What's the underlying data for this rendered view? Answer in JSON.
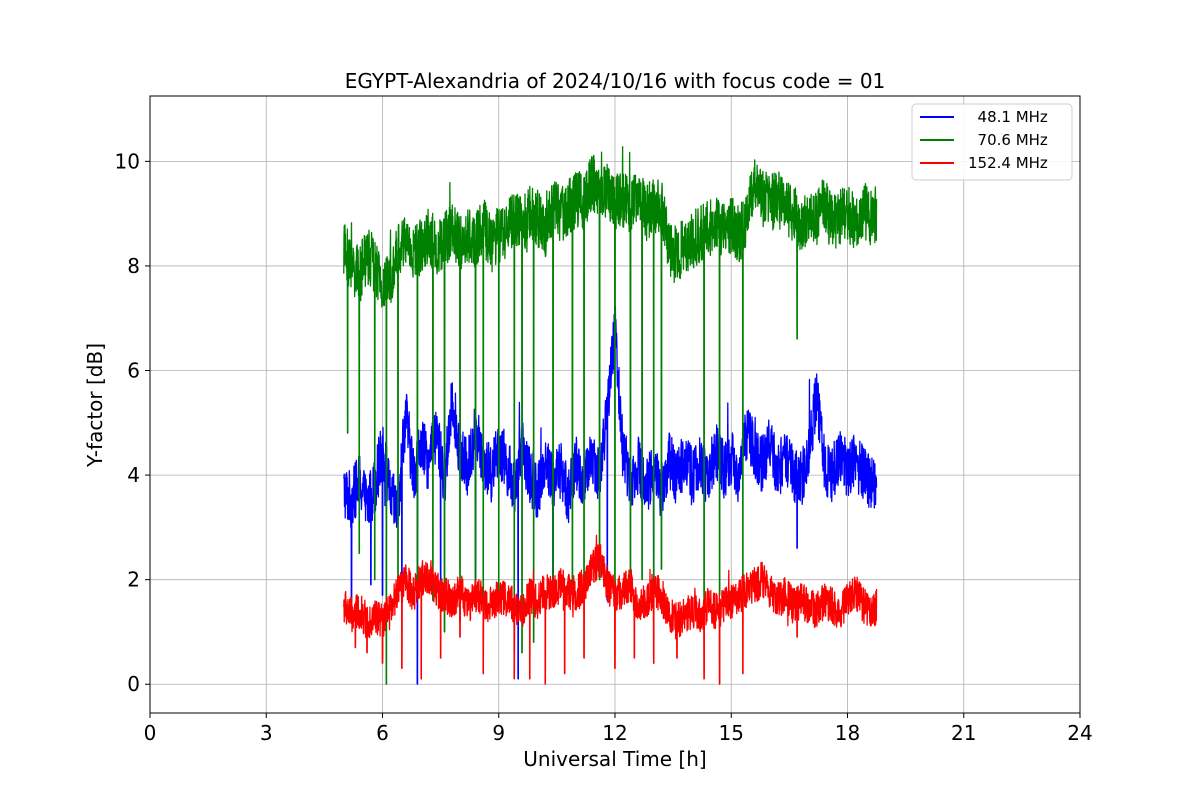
{
  "chart_data": {
    "type": "line",
    "title": "EGYPT-Alexandria of 2024/10/16 with focus code = 01",
    "xlabel": "Universal Time [h]",
    "ylabel": "Y-factor [dB]",
    "xlim": [
      0,
      24
    ],
    "ylim": [
      -0.55,
      11.25
    ],
    "xticks": [
      0,
      3,
      6,
      9,
      12,
      15,
      18,
      21,
      24
    ],
    "yticks": [
      0,
      2,
      4,
      6,
      8,
      10
    ],
    "grid": true,
    "legend_position": "top-right",
    "series": [
      {
        "name": "  48.1 MHz",
        "color": "#0000ff",
        "x": [
          5.0,
          5.2,
          5.4,
          5.6,
          5.8,
          6.0,
          6.2,
          6.4,
          6.6,
          6.8,
          7.0,
          7.2,
          7.4,
          7.6,
          7.8,
          8.0,
          8.2,
          8.4,
          8.6,
          8.8,
          9.0,
          9.2,
          9.4,
          9.6,
          9.8,
          10.0,
          10.2,
          10.4,
          10.6,
          10.8,
          11.0,
          11.2,
          11.4,
          11.6,
          11.8,
          12.0,
          12.2,
          12.4,
          12.6,
          12.8,
          13.0,
          13.2,
          13.4,
          13.6,
          13.8,
          14.0,
          14.2,
          14.4,
          14.6,
          14.8,
          15.0,
          15.2,
          15.4,
          15.6,
          15.8,
          16.0,
          16.2,
          16.4,
          16.6,
          16.8,
          17.0,
          17.2,
          17.4,
          17.6,
          17.8,
          18.0,
          18.2,
          18.4,
          18.6,
          18.75
        ],
        "y": [
          3.7,
          3.5,
          3.9,
          3.4,
          3.8,
          4.5,
          3.6,
          3.3,
          5.2,
          4.0,
          4.6,
          4.2,
          4.8,
          3.9,
          5.5,
          4.4,
          4.1,
          4.9,
          4.3,
          4.0,
          4.6,
          4.2,
          3.8,
          4.5,
          4.0,
          3.7,
          4.3,
          3.9,
          4.1,
          3.6,
          4.2,
          3.8,
          4.4,
          4.0,
          5.2,
          6.8,
          4.5,
          3.9,
          4.2,
          3.8,
          4.1,
          3.7,
          4.3,
          3.9,
          4.4,
          4.0,
          4.2,
          3.9,
          4.5,
          4.1,
          4.3,
          4.0,
          4.8,
          4.5,
          4.2,
          4.6,
          4.1,
          4.3,
          4.0,
          3.9,
          4.5,
          5.5,
          4.2,
          4.0,
          4.4,
          4.1,
          4.3,
          4.0,
          3.9,
          3.8
        ],
        "dips": [
          [
            5.2,
            1.6
          ],
          [
            5.7,
            1.9
          ],
          [
            6.0,
            1.7
          ],
          [
            6.5,
            1.8
          ],
          [
            6.9,
            0.0
          ],
          [
            7.5,
            1.9
          ],
          [
            8.4,
            2.0
          ],
          [
            9.5,
            0.1
          ],
          [
            10.4,
            1.5
          ],
          [
            11.8,
            1.6
          ],
          [
            13.0,
            1.8
          ],
          [
            16.7,
            2.6
          ]
        ]
      },
      {
        "name": "  70.6 MHz",
        "color": "#008000",
        "x": [
          5.0,
          5.2,
          5.4,
          5.6,
          5.8,
          6.0,
          6.2,
          6.4,
          6.6,
          6.8,
          7.0,
          7.2,
          7.4,
          7.6,
          7.8,
          8.0,
          8.2,
          8.4,
          8.6,
          8.8,
          9.0,
          9.2,
          9.4,
          9.6,
          9.8,
          10.0,
          10.2,
          10.4,
          10.6,
          10.8,
          11.0,
          11.2,
          11.4,
          11.6,
          11.8,
          12.0,
          12.2,
          12.4,
          12.6,
          12.8,
          13.0,
          13.2,
          13.4,
          13.6,
          13.8,
          14.0,
          14.2,
          14.4,
          14.6,
          14.8,
          15.0,
          15.2,
          15.4,
          15.6,
          15.8,
          16.0,
          16.2,
          16.4,
          16.6,
          16.8,
          17.0,
          17.2,
          17.4,
          17.6,
          17.8,
          18.0,
          18.2,
          18.4,
          18.6,
          18.75
        ],
        "y": [
          8.3,
          8.0,
          7.8,
          8.2,
          8.0,
          7.5,
          7.8,
          8.3,
          8.5,
          8.2,
          8.4,
          8.6,
          8.3,
          8.5,
          8.7,
          8.4,
          8.6,
          8.5,
          8.8,
          8.4,
          8.6,
          8.7,
          8.9,
          8.8,
          9.0,
          8.9,
          8.7,
          9.2,
          9.0,
          9.1,
          9.3,
          9.2,
          9.6,
          9.5,
          9.4,
          9.2,
          9.3,
          9.1,
          9.4,
          9.0,
          9.2,
          9.1,
          8.3,
          8.2,
          8.4,
          8.5,
          8.6,
          8.7,
          8.8,
          8.7,
          8.8,
          8.6,
          8.9,
          9.6,
          9.3,
          9.2,
          9.3,
          9.1,
          9.0,
          8.8,
          9.0,
          8.9,
          9.2,
          8.8,
          8.9,
          9.0,
          8.8,
          9.1,
          8.9,
          9.0
        ],
        "dips": [
          [
            5.1,
            4.8
          ],
          [
            5.4,
            2.5
          ],
          [
            5.8,
            2.0
          ],
          [
            6.1,
            0.0
          ],
          [
            6.4,
            1.7
          ],
          [
            6.9,
            1.9
          ],
          [
            7.3,
            1.6
          ],
          [
            7.6,
            1.0
          ],
          [
            8.0,
            1.2
          ],
          [
            8.4,
            1.6
          ],
          [
            8.6,
            1.4
          ],
          [
            9.0,
            1.4
          ],
          [
            9.4,
            0.6
          ],
          [
            9.6,
            0.6
          ],
          [
            9.9,
            0.8
          ],
          [
            10.4,
            1.6
          ],
          [
            10.9,
            1.7
          ],
          [
            11.2,
            1.8
          ],
          [
            11.6,
            2.0
          ],
          [
            12.0,
            1.6
          ],
          [
            12.4,
            1.9
          ],
          [
            12.7,
            2.0
          ],
          [
            13.0,
            1.7
          ],
          [
            13.2,
            2.2
          ],
          [
            14.3,
            1.4
          ],
          [
            14.7,
            1.7
          ],
          [
            15.3,
            1.6
          ],
          [
            16.7,
            6.6
          ]
        ]
      },
      {
        "name": "152.4 MHz",
        "color": "#ff0000",
        "x": [
          5.0,
          5.2,
          5.4,
          5.6,
          5.8,
          6.0,
          6.2,
          6.4,
          6.6,
          6.8,
          7.0,
          7.2,
          7.4,
          7.6,
          7.8,
          8.0,
          8.2,
          8.4,
          8.6,
          8.8,
          9.0,
          9.2,
          9.4,
          9.6,
          9.8,
          10.0,
          10.2,
          10.4,
          10.6,
          10.8,
          11.0,
          11.2,
          11.4,
          11.6,
          11.8,
          12.0,
          12.2,
          12.4,
          12.6,
          12.8,
          13.0,
          13.2,
          13.4,
          13.6,
          13.8,
          14.0,
          14.2,
          14.4,
          14.6,
          14.8,
          15.0,
          15.2,
          15.4,
          15.6,
          15.8,
          16.0,
          16.2,
          16.4,
          16.6,
          16.8,
          17.0,
          17.2,
          17.4,
          17.6,
          17.8,
          18.0,
          18.2,
          18.4,
          18.6,
          18.75
        ],
        "y": [
          1.5,
          1.3,
          1.4,
          1.2,
          1.3,
          1.2,
          1.4,
          1.8,
          2.0,
          1.7,
          2.0,
          2.1,
          1.8,
          1.7,
          1.6,
          1.8,
          1.5,
          1.7,
          1.6,
          1.5,
          1.7,
          1.6,
          1.5,
          1.4,
          1.7,
          1.6,
          1.8,
          1.7,
          1.9,
          1.8,
          1.7,
          1.9,
          2.2,
          2.4,
          1.9,
          1.7,
          1.8,
          1.9,
          1.5,
          1.6,
          1.8,
          1.7,
          1.3,
          1.2,
          1.3,
          1.4,
          1.3,
          1.5,
          1.4,
          1.5,
          1.6,
          1.7,
          1.8,
          1.9,
          2.0,
          1.8,
          1.6,
          1.7,
          1.5,
          1.6,
          1.5,
          1.4,
          1.6,
          1.5,
          1.4,
          1.6,
          1.8,
          1.5,
          1.4,
          1.5
        ],
        "dips": [
          [
            5.3,
            0.7
          ],
          [
            5.6,
            0.6
          ],
          [
            6.0,
            0.4
          ],
          [
            6.5,
            0.3
          ],
          [
            7.0,
            0.1
          ],
          [
            7.5,
            0.5
          ],
          [
            8.0,
            0.9
          ],
          [
            8.6,
            0.2
          ],
          [
            9.4,
            0.1
          ],
          [
            9.8,
            0.1
          ],
          [
            10.2,
            0.0
          ],
          [
            10.7,
            0.2
          ],
          [
            11.2,
            0.5
          ],
          [
            12.0,
            0.3
          ],
          [
            12.5,
            0.5
          ],
          [
            13.0,
            0.4
          ],
          [
            13.6,
            0.5
          ],
          [
            14.3,
            0.1
          ],
          [
            14.7,
            0.0
          ],
          [
            15.3,
            0.2
          ],
          [
            16.7,
            0.9
          ]
        ]
      }
    ]
  }
}
